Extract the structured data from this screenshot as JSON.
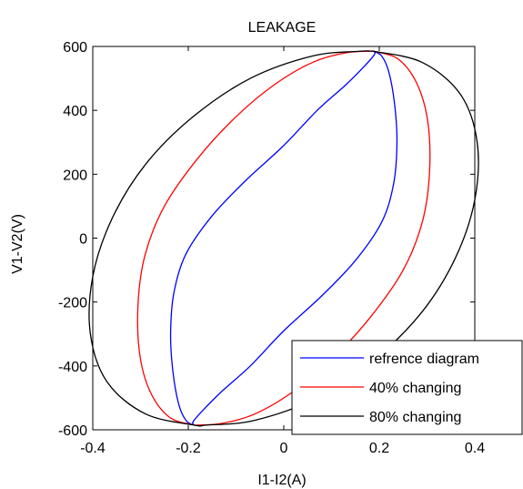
{
  "chart_data": {
    "type": "line",
    "title": "LEAKAGE",
    "xlabel": "I1-I2(A)",
    "ylabel": "V1-V2(V)",
    "xlim": [
      -0.4,
      0.4
    ],
    "ylim": [
      -600,
      600
    ],
    "xticks": [
      -0.4,
      -0.2,
      0,
      0.2,
      0.4
    ],
    "xtick_labels": [
      "-0.4",
      "-0.2",
      "0",
      "0.2",
      "0.4"
    ],
    "yticks": [
      -600,
      -400,
      -200,
      0,
      200,
      400,
      600
    ],
    "ytick_labels": [
      "-600",
      "-400",
      "-200",
      "0",
      "200",
      "400",
      "600"
    ],
    "grid": false,
    "legend_position": "bottom-right",
    "series": [
      {
        "name": "refrence diagram",
        "color": "#0000ff",
        "x": [
          0.188,
          0.205,
          0.22,
          0.232,
          0.237,
          0.23,
          0.205,
          0.15,
          0.08,
          0.0,
          -0.07,
          -0.13,
          -0.17,
          -0.19,
          -0.188,
          -0.205,
          -0.22,
          -0.232,
          -0.237,
          -0.23,
          -0.205,
          -0.15,
          -0.08,
          0.0,
          0.07,
          0.13,
          0.17,
          0.19,
          0.188
        ],
        "y": [
          585,
          570,
          520,
          420,
          300,
          170,
          50,
          -70,
          -180,
          -290,
          -400,
          -480,
          -540,
          -575,
          -585,
          -570,
          -520,
          -420,
          -300,
          -170,
          -50,
          70,
          180,
          290,
          400,
          480,
          540,
          575,
          585
        ]
      },
      {
        "name": "40% changing",
        "color": "#ff0000",
        "x": [
          0.188,
          0.24,
          0.28,
          0.302,
          0.305,
          0.29,
          0.25,
          0.18,
          0.1,
          0.02,
          -0.06,
          -0.13,
          -0.18,
          -0.188,
          -0.24,
          -0.28,
          -0.302,
          -0.305,
          -0.29,
          -0.25,
          -0.18,
          -0.1,
          -0.02,
          0.06,
          0.13,
          0.18,
          0.188
        ],
        "y": [
          585,
          560,
          480,
          360,
          200,
          50,
          -100,
          -250,
          -380,
          -480,
          -550,
          -580,
          -585,
          -585,
          -560,
          -480,
          -360,
          -200,
          -50,
          100,
          250,
          380,
          480,
          550,
          580,
          585,
          585
        ]
      },
      {
        "name": "80% changing",
        "color": "#000000",
        "x": [
          0.188,
          0.29,
          0.37,
          0.405,
          0.4,
          0.36,
          0.29,
          0.19,
          0.07,
          -0.06,
          -0.16,
          -0.188,
          -0.29,
          -0.37,
          -0.405,
          -0.4,
          -0.36,
          -0.29,
          -0.19,
          -0.07,
          0.06,
          0.16,
          0.188
        ],
        "y": [
          585,
          550,
          450,
          300,
          120,
          -60,
          -230,
          -380,
          -500,
          -570,
          -585,
          -585,
          -550,
          -450,
          -300,
          -120,
          60,
          230,
          380,
          500,
          570,
          585,
          585
        ]
      }
    ]
  }
}
